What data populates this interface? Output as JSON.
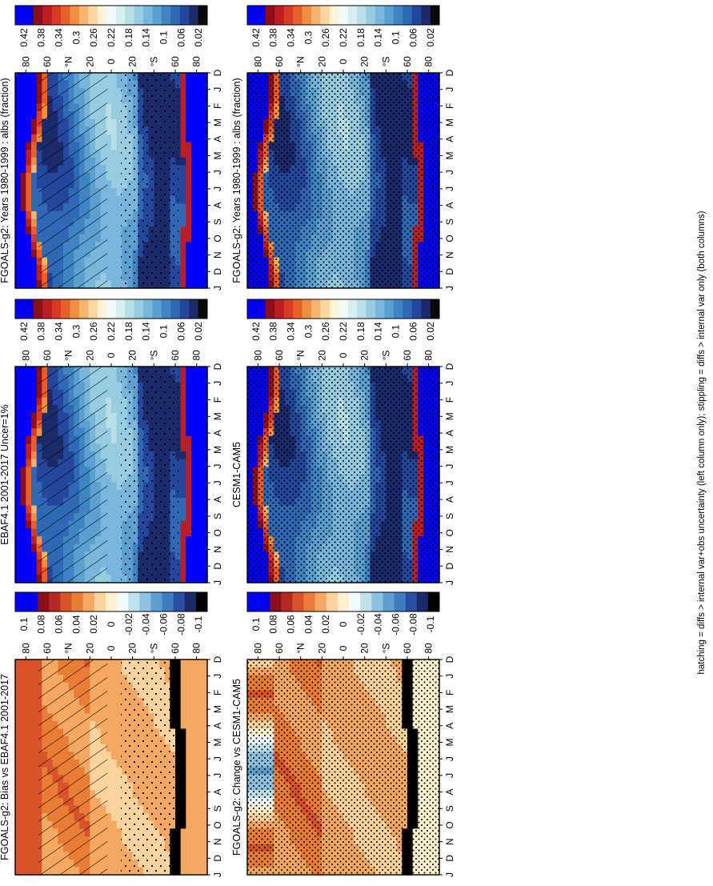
{
  "figure": {
    "footnote": "hatching = diffs > internal var+obs uncertainty (left column only); stippling = diffs > internal var only (both columns)"
  },
  "colors": {
    "abs_scale": [
      "#0a0a0a",
      "#1b2a6b",
      "#23479c",
      "#2f68b4",
      "#3f85c4",
      "#5aa0d0",
      "#78b6dc",
      "#98cce0",
      "#b9e0e6",
      "#d6f0f2",
      "#f2fbfb",
      "#fff4d6",
      "#fbd69f",
      "#f6b46e",
      "#ef8f3f",
      "#e7602a",
      "#d83a24",
      "#bb1e22",
      "#8e0d1c",
      "#0000ee",
      "#0000ff"
    ],
    "diff_scale": [
      "#000000",
      "#1b2a6b",
      "#2a4fa2",
      "#3f7cc0",
      "#5e9fd1",
      "#8dc1df",
      "#bfe1ea",
      "#f2fbfb",
      "#fff0d0",
      "#fbd39d",
      "#f4a862",
      "#ea7d35",
      "#d8532a",
      "#b52a22",
      "#8a0f1b",
      "#0000ee",
      "#0000ff"
    ]
  },
  "chart_data": [
    {
      "type": "heatmap",
      "panel": "left-top",
      "title": "FGOALS-g2: Years 1980-1999 : albs (fraction)",
      "x_ticks": [
        "D",
        "J",
        "F",
        "M",
        "A",
        "M",
        "J",
        "J",
        "A",
        "S",
        "O",
        "N",
        "D",
        "J"
      ],
      "y_ticks": [
        "80",
        "60",
        "°N",
        "20",
        "0",
        "20",
        "°S",
        "60",
        "80"
      ],
      "y_range": [
        -90,
        90
      ],
      "colorbar": {
        "labels": [
          "0.42",
          "0.38",
          "0.34",
          "0.3",
          "0.26",
          "0.22",
          "0.18",
          "0.14",
          "0.1",
          "0.06",
          "0.02"
        ],
        "range": [
          0,
          0.44
        ]
      },
      "overlay": "hatching+stippling"
    },
    {
      "type": "heatmap",
      "panel": "left-middle",
      "title": "EBAF4.1 2001-2017 Uncer=1%",
      "x_ticks": [
        "D",
        "J",
        "F",
        "M",
        "A",
        "M",
        "J",
        "J",
        "A",
        "S",
        "O",
        "N",
        "D",
        "J"
      ],
      "y_ticks": [
        "80",
        "60",
        "°N",
        "20",
        "0",
        "20",
        "°S",
        "60",
        "80"
      ],
      "y_range": [
        -90,
        90
      ],
      "colorbar": {
        "labels": [
          "0.42",
          "0.38",
          "0.34",
          "0.3",
          "0.26",
          "0.22",
          "0.18",
          "0.14",
          "0.1",
          "0.06",
          "0.02"
        ],
        "range": [
          0,
          0.44
        ]
      },
      "overlay": "hatching+stippling"
    },
    {
      "type": "heatmap",
      "panel": "left-bottom",
      "title": "FGOALS-g2: Bias vs EBAF4.1 2001-2017",
      "x_ticks": [
        "D",
        "J",
        "F",
        "M",
        "A",
        "M",
        "J",
        "J",
        "A",
        "S",
        "O",
        "N",
        "D",
        "J"
      ],
      "y_ticks": [
        "80",
        "60",
        "°N",
        "20",
        "0",
        "20",
        "°S",
        "60",
        "80"
      ],
      "y_range": [
        -90,
        90
      ],
      "colorbar": {
        "labels": [
          "0.1",
          "0.08",
          "0.06",
          "0.04",
          "0.02",
          "0",
          "-0.02",
          "-0.04",
          "-0.06",
          "-0.08",
          "-0.1"
        ],
        "range": [
          -0.12,
          0.12
        ]
      },
      "overlay": "hatching+stippling"
    },
    {
      "type": "heatmap",
      "panel": "right-top",
      "title": "FGOALS-g2: Years 1980-1999 : albs (fraction)",
      "x_ticks": [
        "D",
        "J",
        "F",
        "M",
        "A",
        "M",
        "J",
        "J",
        "A",
        "S",
        "O",
        "N",
        "D",
        "J"
      ],
      "y_ticks": [
        "80",
        "60",
        "°N",
        "20",
        "0",
        "20",
        "°S",
        "60",
        "80"
      ],
      "y_range": [
        -90,
        90
      ],
      "colorbar": {
        "labels": [
          "0.42",
          "0.38",
          "0.34",
          "0.3",
          "0.26",
          "0.22",
          "0.18",
          "0.14",
          "0.1",
          "0.06",
          "0.02"
        ],
        "range": [
          0,
          0.44
        ]
      },
      "overlay": "stippling"
    },
    {
      "type": "heatmap",
      "panel": "right-middle",
      "title": "CESM1-CAM5",
      "x_ticks": [
        "D",
        "J",
        "F",
        "M",
        "A",
        "M",
        "J",
        "J",
        "A",
        "S",
        "O",
        "N",
        "D",
        "J"
      ],
      "y_ticks": [
        "80",
        "60",
        "°N",
        "20",
        "0",
        "20",
        "°S",
        "60",
        "80"
      ],
      "y_range": [
        -90,
        90
      ],
      "colorbar": {
        "labels": [
          "0.42",
          "0.38",
          "0.34",
          "0.3",
          "0.26",
          "0.22",
          "0.18",
          "0.14",
          "0.1",
          "0.06",
          "0.02"
        ],
        "range": [
          0,
          0.44
        ]
      },
      "overlay": "stippling"
    },
    {
      "type": "heatmap",
      "panel": "right-bottom",
      "title": "FGOALS-g2: Change vs CESM1-CAM5",
      "x_ticks": [
        "D",
        "J",
        "F",
        "M",
        "A",
        "M",
        "J",
        "J",
        "A",
        "S",
        "O",
        "N",
        "D",
        "J"
      ],
      "y_ticks": [
        "80",
        "60",
        "°N",
        "20",
        "0",
        "20",
        "°S",
        "60",
        "80"
      ],
      "y_range": [
        -90,
        90
      ],
      "colorbar": {
        "labels": [
          "0.1",
          "0.08",
          "0.06",
          "0.04",
          "0.02",
          "0",
          "-0.02",
          "-0.04",
          "-0.06",
          "-0.08",
          "-0.1"
        ],
        "range": [
          -0.12,
          0.12
        ]
      },
      "overlay": "stippling"
    }
  ]
}
